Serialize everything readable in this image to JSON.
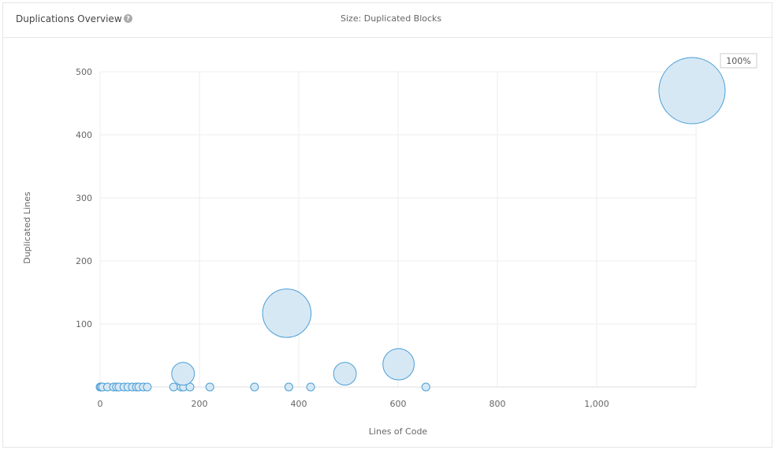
{
  "header": {
    "title": "Duplications Overview",
    "size_label": "Size: Duplicated Blocks"
  },
  "tooltip": {
    "label": "100%"
  },
  "colors": {
    "bubble_fill": "#d7e8f5",
    "bubble_stroke": "#4b9fd5",
    "grid": "#eeeeee"
  },
  "chart_data": {
    "type": "scatter",
    "title": "",
    "xlabel": "Lines of Code",
    "ylabel": "Duplicated Lines",
    "xlim": [
      0,
      1200
    ],
    "ylim": [
      0,
      500
    ],
    "xticks": [
      0,
      200,
      400,
      600,
      800,
      1000
    ],
    "xtick_labels": [
      "0",
      "200",
      "400",
      "600",
      "800",
      "1,000"
    ],
    "yticks": [
      100,
      200,
      300,
      400,
      500
    ],
    "ytick_labels": [
      "100",
      "200",
      "300",
      "400",
      "500"
    ],
    "grid": true,
    "points": [
      {
        "x": 0,
        "y": 0,
        "size": 1
      },
      {
        "x": 2,
        "y": 0,
        "size": 1
      },
      {
        "x": 5,
        "y": 0,
        "size": 1
      },
      {
        "x": 15,
        "y": 0,
        "size": 1
      },
      {
        "x": 27,
        "y": 0,
        "size": 1
      },
      {
        "x": 33,
        "y": 0,
        "size": 1
      },
      {
        "x": 38,
        "y": 0,
        "size": 1
      },
      {
        "x": 48,
        "y": 0,
        "size": 1
      },
      {
        "x": 56,
        "y": 0,
        "size": 1
      },
      {
        "x": 65,
        "y": 0,
        "size": 1
      },
      {
        "x": 73,
        "y": 0,
        "size": 1
      },
      {
        "x": 78,
        "y": 0,
        "size": 1
      },
      {
        "x": 87,
        "y": 0,
        "size": 1
      },
      {
        "x": 95,
        "y": 0,
        "size": 1
      },
      {
        "x": 148,
        "y": 0,
        "size": 1
      },
      {
        "x": 163,
        "y": 0,
        "size": 1
      },
      {
        "x": 168,
        "y": 0,
        "size": 1
      },
      {
        "x": 181,
        "y": 0,
        "size": 1
      },
      {
        "x": 167,
        "y": 21,
        "size": 3
      },
      {
        "x": 221,
        "y": 0,
        "size": 1
      },
      {
        "x": 311,
        "y": 0,
        "size": 1
      },
      {
        "x": 376,
        "y": 117,
        "size": 16
      },
      {
        "x": 380,
        "y": 0,
        "size": 1
      },
      {
        "x": 424,
        "y": 0,
        "size": 1
      },
      {
        "x": 493,
        "y": 21,
        "size": 3
      },
      {
        "x": 601,
        "y": 36,
        "size": 6
      },
      {
        "x": 656,
        "y": 0,
        "size": 1
      },
      {
        "x": 1192,
        "y": 470,
        "size": 32
      }
    ]
  }
}
